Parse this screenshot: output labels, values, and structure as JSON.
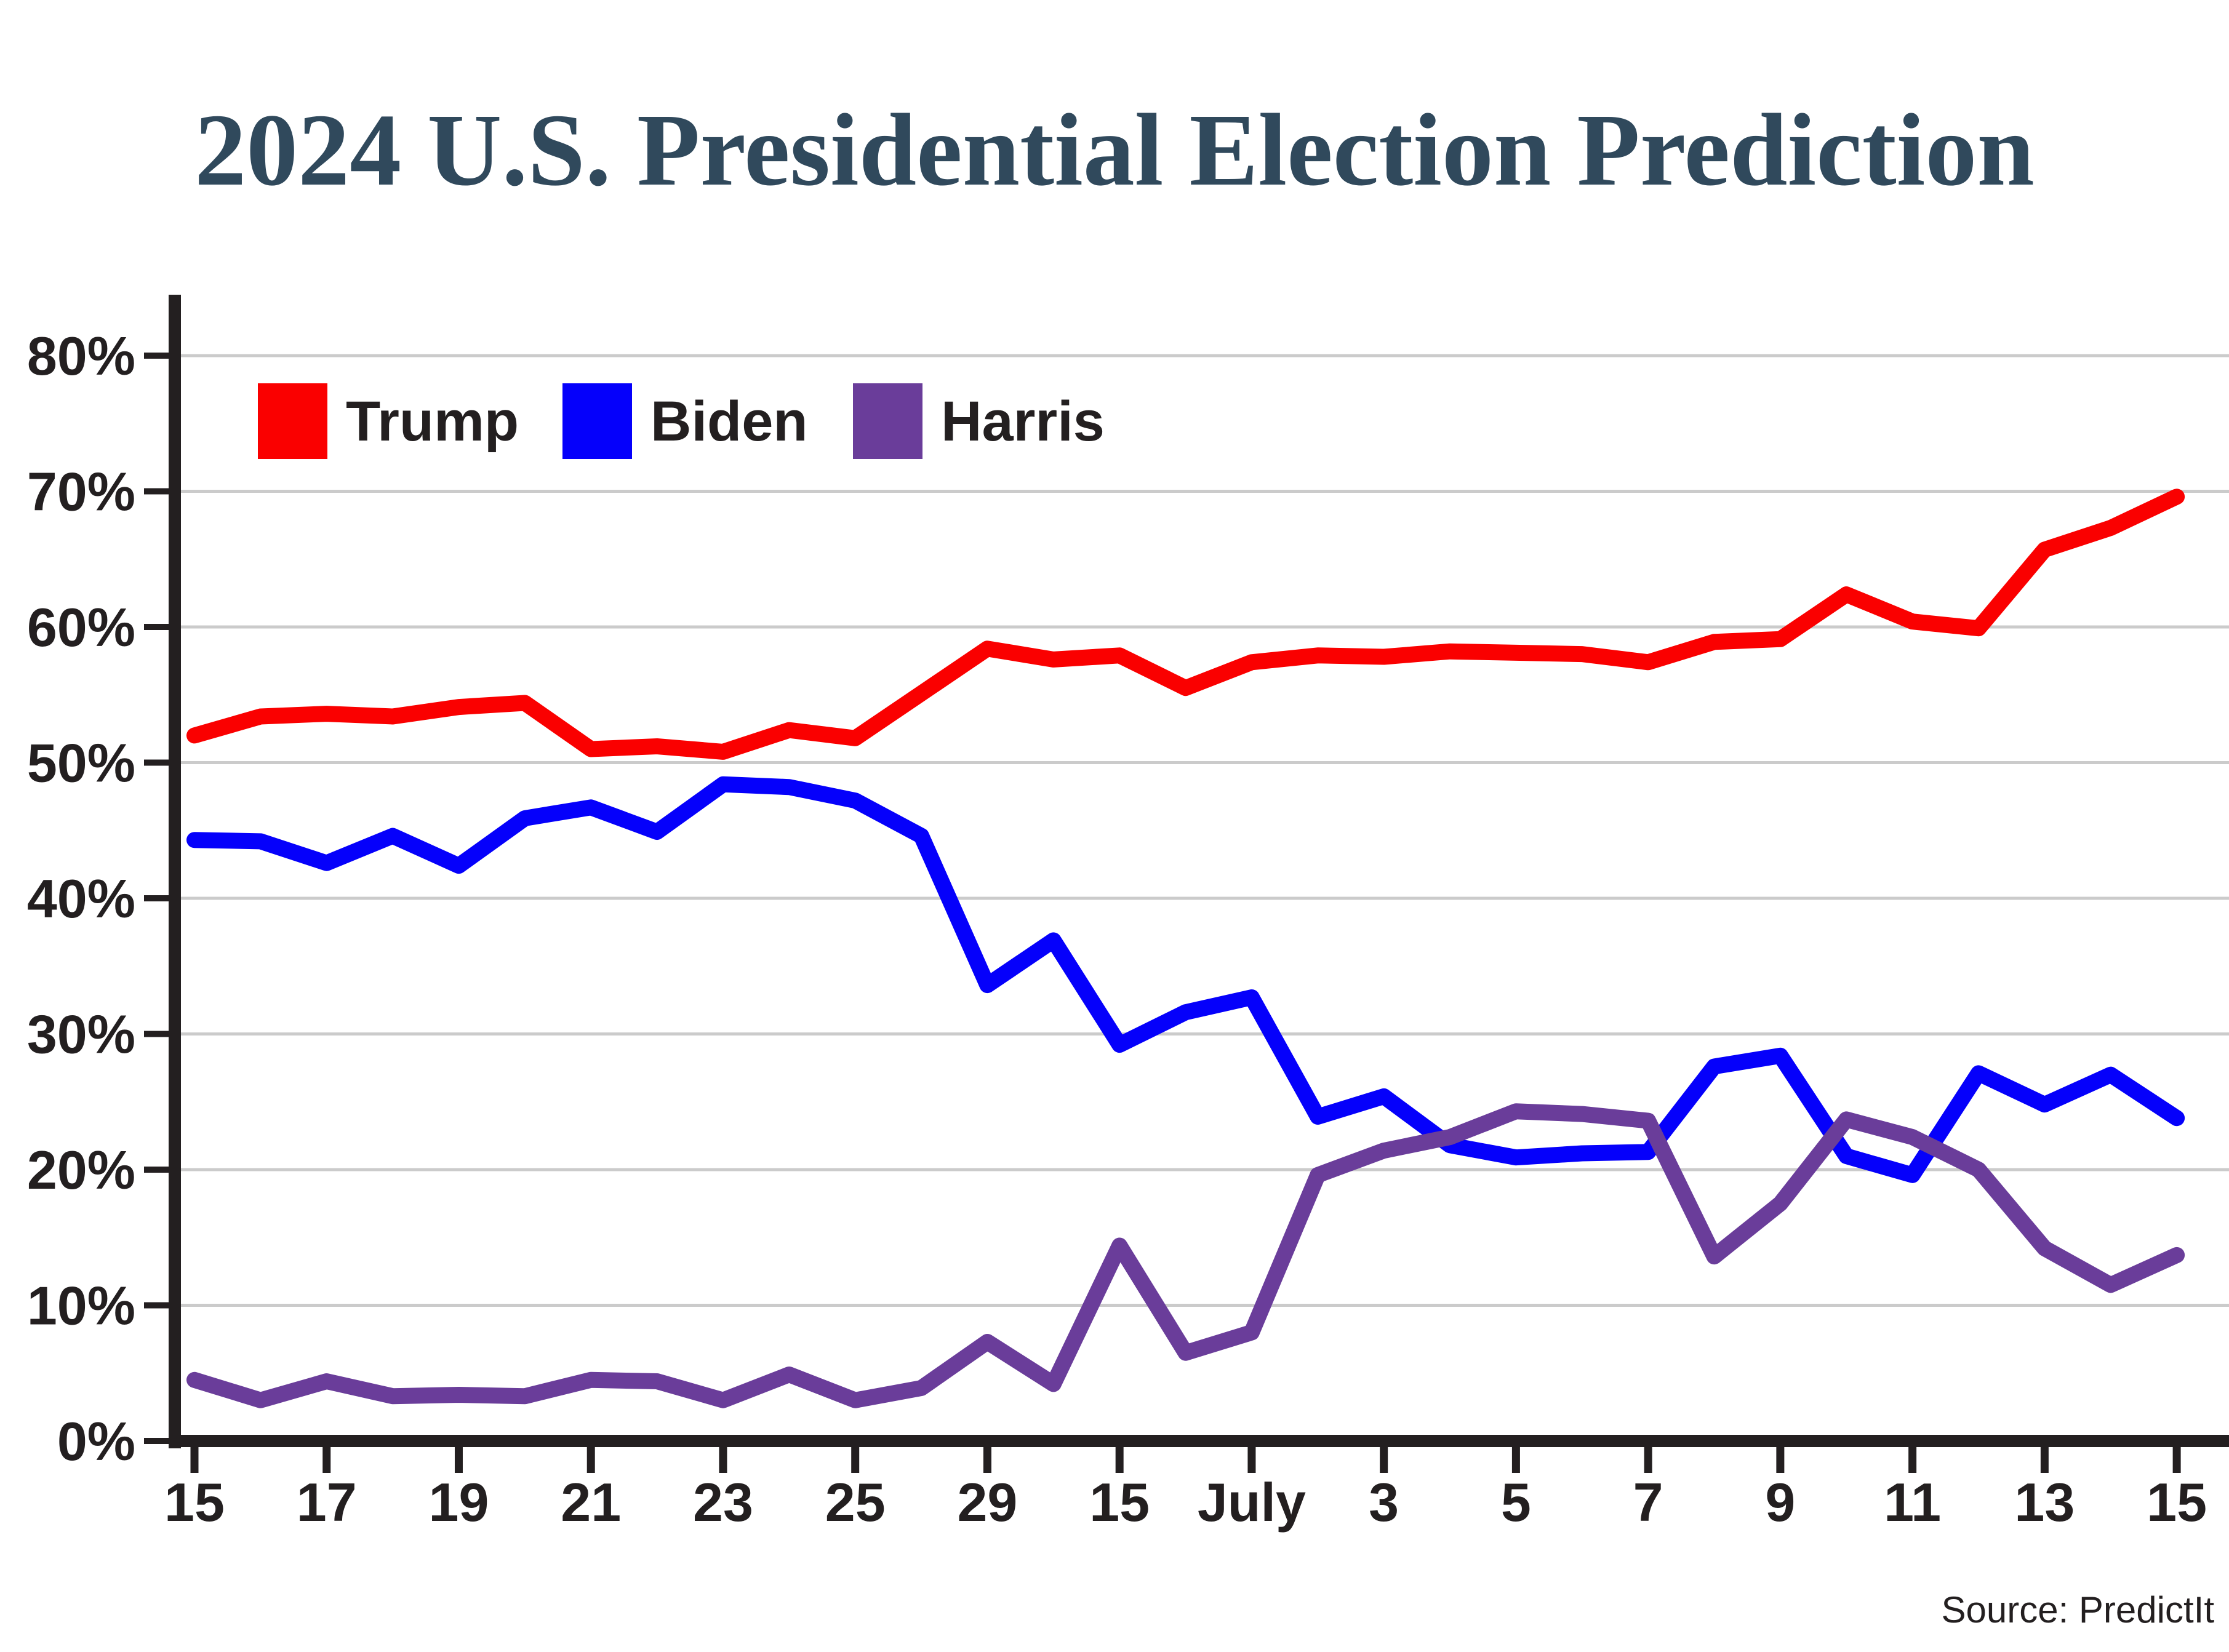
{
  "title": "2024 U.S. Presidential Election Prediction",
  "source": "Source: PredictIt",
  "legend": {
    "items": [
      {
        "label": "Trump",
        "color": "#FA0000"
      },
      {
        "label": "Biden",
        "color": "#0500FB"
      },
      {
        "label": "Harris",
        "color": "#6A3D9A"
      }
    ]
  },
  "y_axis": {
    "tick_labels": [
      "0%",
      "10%",
      "20%",
      "30%",
      "40%",
      "50%",
      "60%",
      "70%",
      "80%"
    ],
    "min": 0,
    "max": 80
  },
  "x_axis": {
    "tick_labels": [
      "15",
      "17",
      "19",
      "21",
      "23",
      "25",
      "29",
      "15",
      "July",
      "3",
      "5",
      "7",
      "9",
      "11",
      "13",
      "15"
    ]
  },
  "colors": {
    "title": "#30495C",
    "axis": "#231F20",
    "grid": "#CBCBCB",
    "background": "#FFFFFF"
  },
  "chart_data": {
    "type": "line",
    "title": "2024 U.S. Presidential Election Prediction",
    "xlabel": "",
    "ylabel": "",
    "ylim": [
      0,
      80
    ],
    "grid": true,
    "legend_position": "top-left-inside",
    "x": [
      "Jun 15",
      "Jun 16",
      "Jun 17",
      "Jun 18",
      "Jun 19",
      "Jun 20",
      "Jun 21",
      "Jun 22",
      "Jun 23",
      "Jun 24",
      "Jun 25",
      "Jun 26",
      "Jun 27",
      "Jun 28",
      "Jun 29",
      "Jun 30",
      "Jul 1",
      "Jul 2",
      "Jul 3",
      "Jul 4",
      "Jul 5",
      "Jul 6",
      "Jul 7",
      "Jul 8",
      "Jul 9",
      "Jul 10",
      "Jul 11",
      "Jul 12",
      "Jul 13",
      "Jul 14",
      "Jul 15"
    ],
    "x_tick_indices": [
      0,
      2,
      4,
      6,
      8,
      10,
      12,
      14,
      16,
      18,
      20,
      22,
      24,
      26,
      28,
      30
    ],
    "x_tick_labels": [
      "15",
      "17",
      "19",
      "21",
      "23",
      "25",
      "29",
      "15",
      "July",
      "3",
      "5",
      "7",
      "9",
      "11",
      "13",
      "15"
    ],
    "series": [
      {
        "name": "Trump",
        "color": "#FA0000",
        "values": [
          52.0,
          53.4,
          53.6,
          53.4,
          54.1,
          54.4,
          51.0,
          51.2,
          50.8,
          52.4,
          51.8,
          55.1,
          58.4,
          57.6,
          57.9,
          55.5,
          57.4,
          57.9,
          57.8,
          58.2,
          58.1,
          58.0,
          57.4,
          58.9,
          59.1,
          62.4,
          60.4,
          59.9,
          65.7,
          67.3,
          69.6
        ]
      },
      {
        "name": "Biden",
        "color": "#0500FB",
        "values": [
          44.3,
          44.2,
          42.6,
          44.6,
          42.4,
          45.9,
          46.7,
          44.9,
          48.4,
          48.2,
          47.2,
          44.6,
          33.6,
          36.9,
          29.2,
          31.6,
          32.7,
          23.9,
          25.4,
          21.8,
          20.9,
          21.2,
          21.3,
          27.6,
          28.4,
          21.0,
          19.6,
          27.1,
          24.8,
          27.0,
          23.8
        ]
      },
      {
        "name": "Harris",
        "color": "#6A3D9A",
        "values": [
          4.5,
          3.0,
          4.4,
          3.3,
          3.4,
          3.3,
          4.5,
          4.4,
          3.0,
          4.9,
          3.0,
          3.9,
          7.3,
          4.2,
          14.4,
          6.5,
          8.0,
          19.6,
          21.4,
          22.4,
          24.3,
          24.1,
          23.6,
          13.6,
          17.5,
          23.7,
          22.4,
          20.0,
          14.2,
          11.5,
          13.7
        ]
      }
    ]
  }
}
